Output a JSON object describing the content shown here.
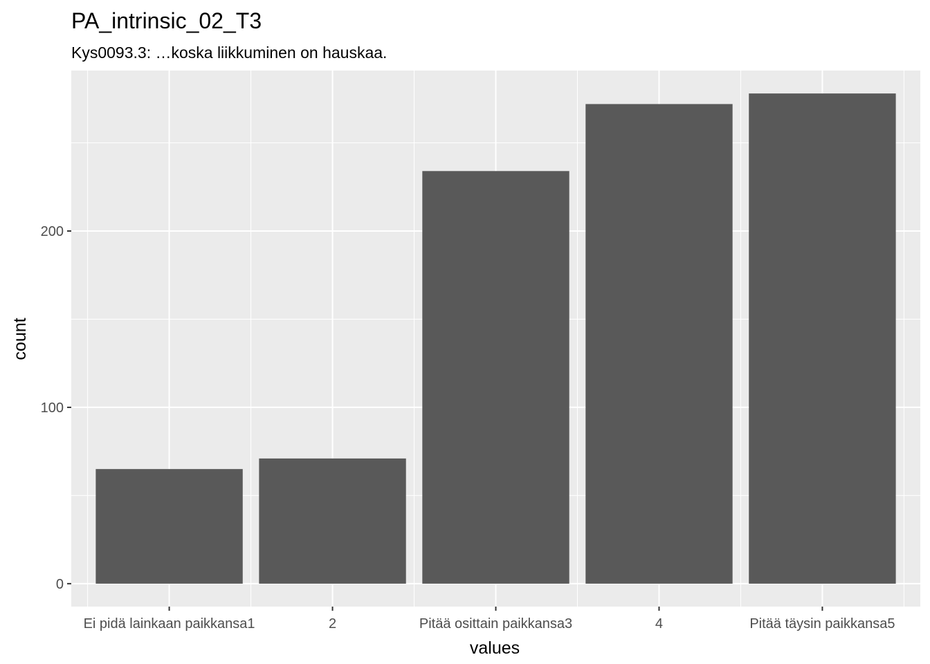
{
  "chart_data": {
    "type": "bar",
    "title": "PA_intrinsic_02_T3",
    "subtitle": "Kys0093.3: …koska liikkuminen on hauskaa.",
    "xlabel": "values",
    "ylabel": "count",
    "categories": [
      "Ei pidä lainkaan paikkansa1",
      "2",
      "Pitää osittain paikkansa3",
      "4",
      "Pitää täysin paikkansa5"
    ],
    "values": [
      65,
      71,
      234,
      272,
      278
    ],
    "ylim": [
      -13,
      291
    ],
    "yticks": [
      0,
      100,
      200
    ],
    "ytick_labels": [
      "0",
      "100",
      "200"
    ],
    "grid": true,
    "colors": {
      "panel": "#ebebeb",
      "grid": "#ffffff",
      "bar": "#595959",
      "tick_text": "#4d4d4d",
      "tick_mark": "#333333"
    }
  }
}
